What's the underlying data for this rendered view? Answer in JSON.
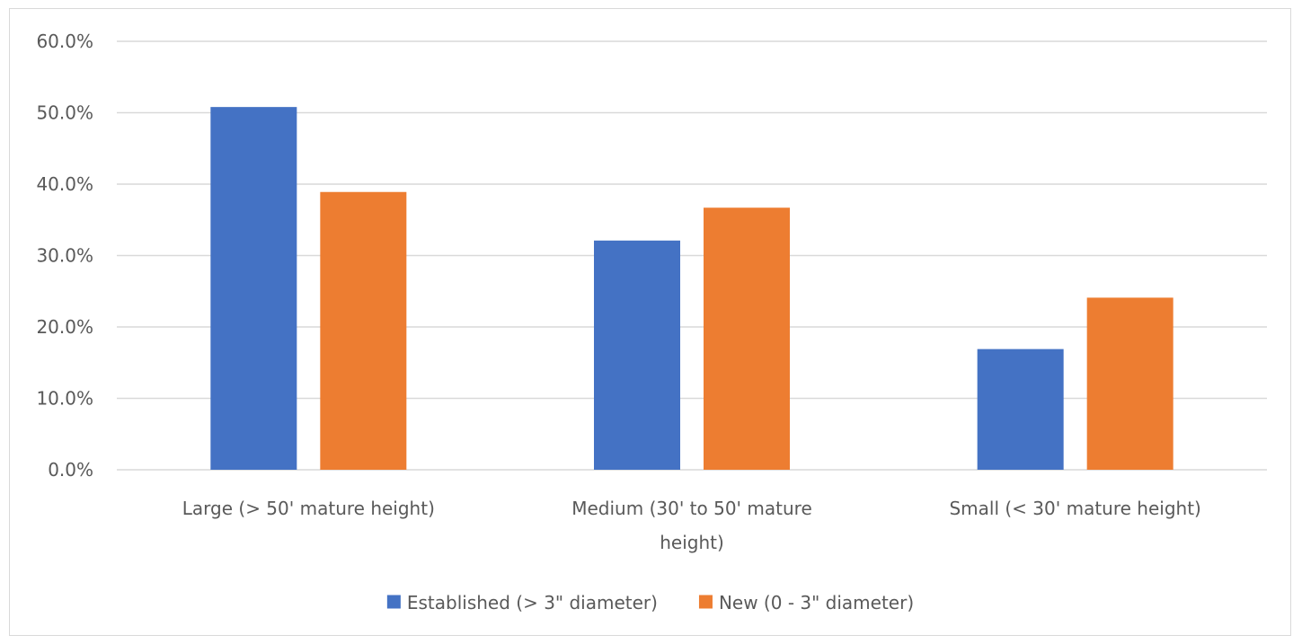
{
  "chart_data": {
    "type": "bar",
    "categories": [
      [
        "Large (> 50' mature height)"
      ],
      [
        "Medium (30' to 50' mature",
        "height)"
      ],
      [
        "Small (< 30' mature height)"
      ]
    ],
    "series": [
      {
        "name": "Established (> 3\" diameter)",
        "color": "#4472C4",
        "values": [
          50.8,
          32.1,
          16.9
        ]
      },
      {
        "name": "New (0 - 3\" diameter)",
        "color": "#ED7D31",
        "values": [
          38.9,
          36.7,
          24.1
        ]
      }
    ],
    "title": "",
    "xlabel": "",
    "ylabel": "",
    "ylim": [
      0,
      60
    ],
    "yticks": [
      "0.0%",
      "10.0%",
      "20.0%",
      "30.0%",
      "40.0%",
      "50.0%",
      "60.0%"
    ],
    "grid": true,
    "legend_position": "bottom"
  }
}
